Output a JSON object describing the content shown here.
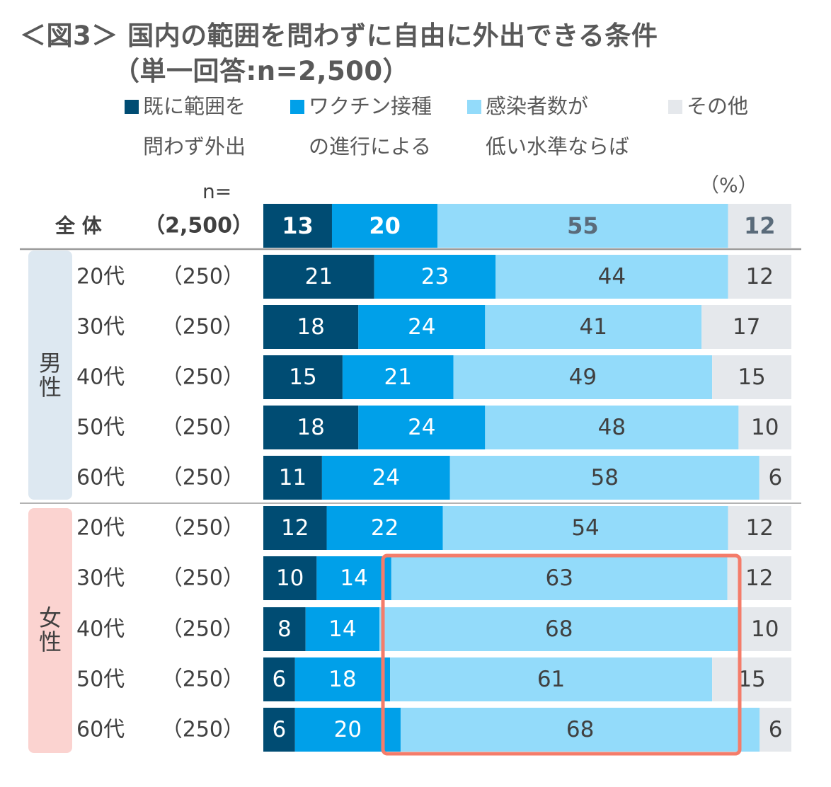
{
  "title": {
    "line1": "＜図3＞ 国内の範囲を問わずに自由に外出できる条件",
    "line2": "（単一回答:n=2,500）"
  },
  "legend": [
    {
      "line1": "既に範囲を",
      "line2": "問わず外出",
      "color": "#004C73"
    },
    {
      "line1": "ワクチン接種",
      "line2": "の進行による",
      "color": "#00A0E9"
    },
    {
      "line1": "感染者数が",
      "line2": "低い水準ならば",
      "color": "#93DBFA"
    },
    {
      "line1": "その他",
      "line2": "",
      "color": "#E5E8EC"
    }
  ],
  "unit_label": "（%）",
  "n_header": "n=",
  "groups": {
    "male": "男性",
    "female": "女性"
  },
  "chart_data": {
    "type": "bar",
    "orientation": "horizontal-stacked-100",
    "title": "国内の範囲を問わずに自由に外出できる条件",
    "xlim": [
      0,
      100
    ],
    "unit": "%",
    "series": [
      {
        "name": "既に範囲を問わず外出",
        "color": "#004C73"
      },
      {
        "name": "ワクチン接種の進行による",
        "color": "#00A0E9"
      },
      {
        "name": "感染者数が低い水準ならば",
        "color": "#93DBFA"
      },
      {
        "name": "その他",
        "color": "#E5E8EC"
      }
    ],
    "rows": [
      {
        "label": "全 体",
        "n": "（2,500）",
        "group": "total",
        "values": [
          13,
          20,
          55,
          12
        ]
      },
      {
        "label": "20代",
        "n": "（250）",
        "group": "male",
        "values": [
          21,
          23,
          44,
          12
        ]
      },
      {
        "label": "30代",
        "n": "（250）",
        "group": "male",
        "values": [
          18,
          24,
          41,
          17
        ]
      },
      {
        "label": "40代",
        "n": "（250）",
        "group": "male",
        "values": [
          15,
          21,
          49,
          15
        ]
      },
      {
        "label": "50代",
        "n": "（250）",
        "group": "male",
        "values": [
          18,
          24,
          48,
          10
        ]
      },
      {
        "label": "60代",
        "n": "（250）",
        "group": "male",
        "values": [
          11,
          24,
          58,
          6
        ]
      },
      {
        "label": "20代",
        "n": "（250）",
        "group": "female",
        "values": [
          12,
          22,
          54,
          12
        ]
      },
      {
        "label": "30代",
        "n": "（250）",
        "group": "female",
        "values": [
          10,
          14,
          63,
          12
        ]
      },
      {
        "label": "40代",
        "n": "（250）",
        "group": "female",
        "values": [
          8,
          14,
          68,
          10
        ]
      },
      {
        "label": "50代",
        "n": "（250）",
        "group": "female",
        "values": [
          6,
          18,
          61,
          15
        ]
      },
      {
        "label": "60代",
        "n": "（250）",
        "group": "female",
        "values": [
          6,
          20,
          68,
          6
        ]
      }
    ],
    "highlight": {
      "group": "female",
      "rows": [
        "30代",
        "40代",
        "50代",
        "60代"
      ],
      "series": "感染者数が低い水準ならば",
      "color": "#F47C6A"
    }
  }
}
